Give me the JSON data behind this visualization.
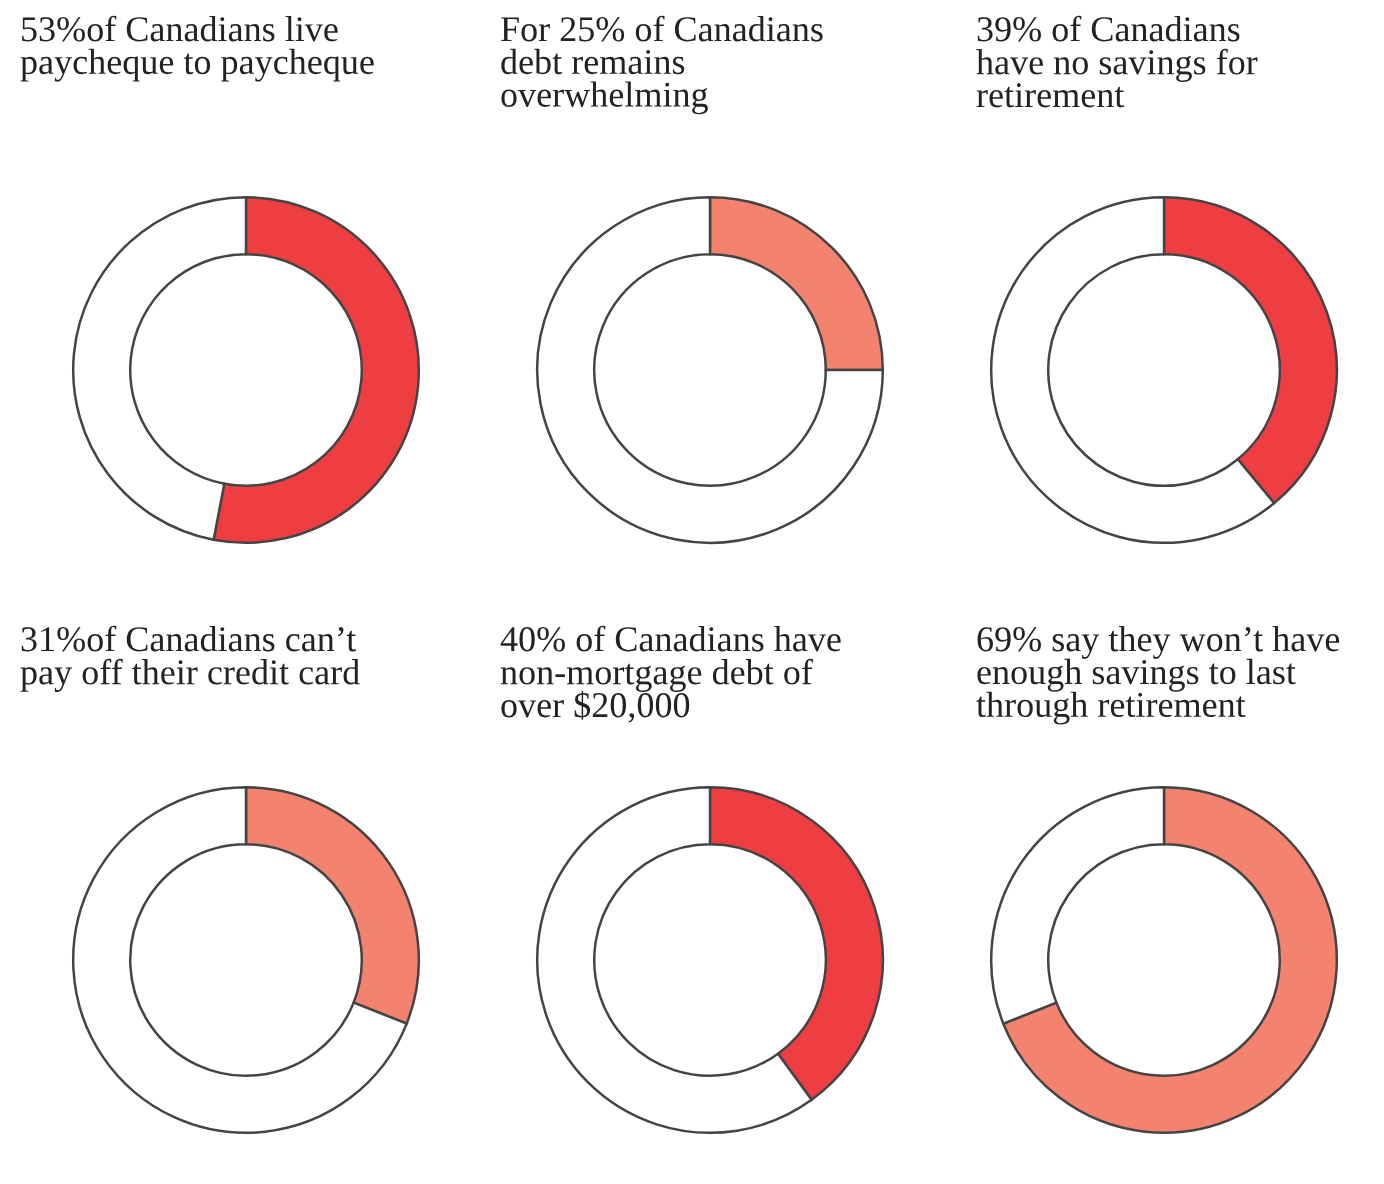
{
  "chart_data": [
    {
      "type": "donut",
      "title": "53%of Canadians live\npaycheque to paycheque",
      "categories": [
        null,
        null
      ],
      "values": [
        53,
        47
      ],
      "colors": [
        "#ef3e42",
        "#ffffff"
      ]
    },
    {
      "type": "donut",
      "title": "For 25% of Canadians\ndebt remains\noverwhelming",
      "categories": [
        null,
        null
      ],
      "values": [
        25,
        75
      ],
      "colors": [
        "#f3826f",
        "#ffffff"
      ]
    },
    {
      "type": "donut",
      "title": "39% of Canadians\nhave no savings for\nretirement",
      "categories": [
        null,
        null
      ],
      "values": [
        39,
        61
      ],
      "colors": [
        "#ef3e42",
        "#ffffff"
      ]
    },
    {
      "type": "donut",
      "title": "31%of Canadians can’t\npay off their credit card",
      "categories": [
        null,
        null
      ],
      "values": [
        31,
        69
      ],
      "colors": [
        "#f3826f",
        "#ffffff"
      ]
    },
    {
      "type": "donut",
      "title": "40% of Canadians have\nnon-mortgage debt of\nover $20,000",
      "categories": [
        null,
        null
      ],
      "values": [
        40,
        60
      ],
      "colors": [
        "#ef3e42",
        "#ffffff"
      ]
    },
    {
      "type": "donut",
      "title": "69% say they won’t have\nenough savings to last\nthrough retirement",
      "categories": [
        null,
        null
      ],
      "values": [
        69,
        31
      ],
      "colors": [
        "#f3826f",
        "#ffffff"
      ]
    }
  ]
}
